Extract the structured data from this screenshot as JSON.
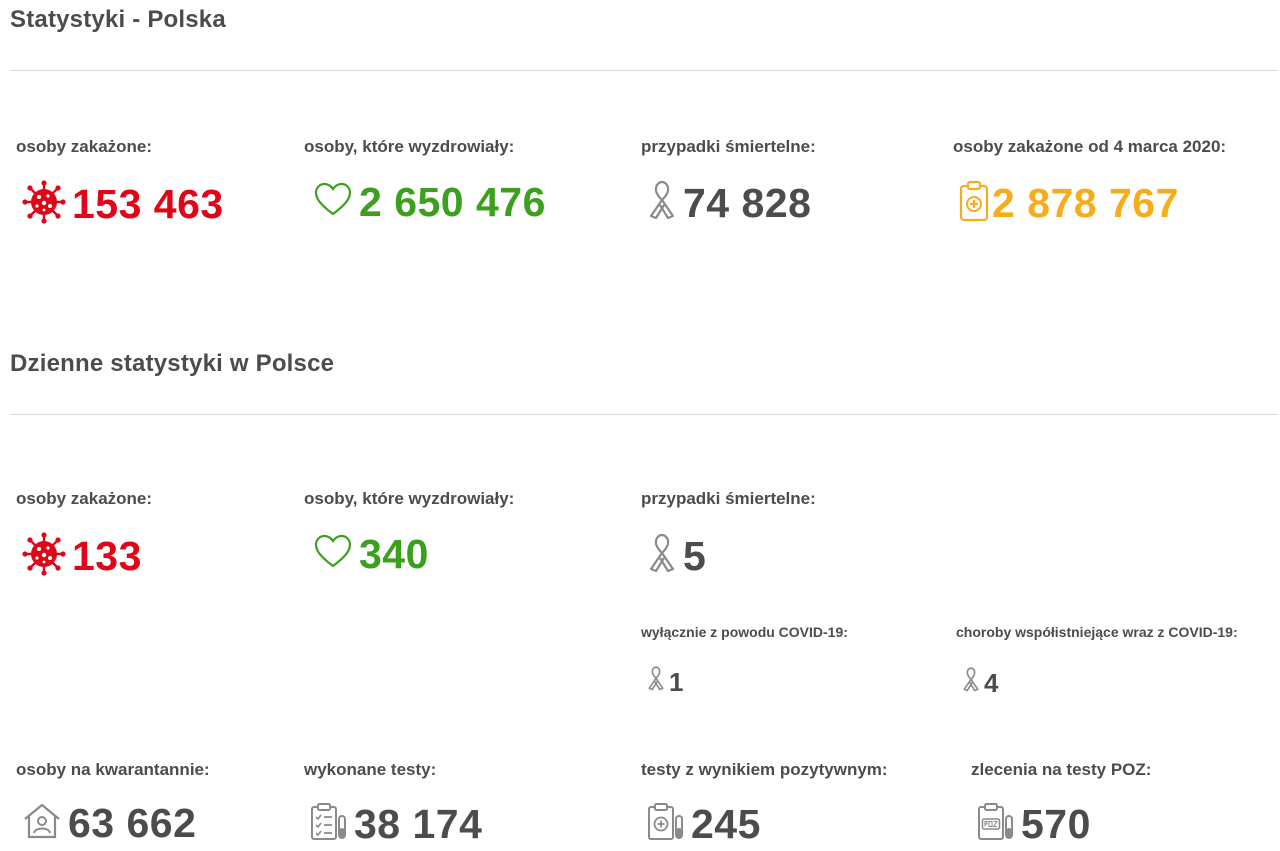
{
  "sections": {
    "total_title": "Statystyki - Polska",
    "daily_title": "Dzienne statystyki w Polsce"
  },
  "total": {
    "infected_label": "osoby zakażone:",
    "infected_value": "153 463",
    "recovered_label": "osoby, które wyzdrowiały:",
    "recovered_value": "2 650 476",
    "deaths_label": "przypadki śmiertelne:",
    "deaths_value": "74 828",
    "since_label": "osoby zakażone od 4 marca 2020:",
    "since_value": "2 878 767"
  },
  "daily": {
    "infected_label": "osoby zakażone:",
    "infected_value": "133",
    "recovered_label": "osoby, które wyzdrowiały:",
    "recovered_value": "340",
    "deaths_label": "przypadki śmiertelne:",
    "deaths_value": "5",
    "covid_only_label": "wyłącznie z powodu COVID-19:",
    "covid_only_value": "1",
    "comorbid_label": "choroby współistniejące wraz z COVID-19:",
    "comorbid_value": "4",
    "quarantine_label": "osoby na kwarantannie:",
    "quarantine_value": "63 662",
    "tests_label": "wykonane testy:",
    "tests_value": "38 174",
    "positive_label": "testy z wynikiem pozytywnym:",
    "positive_value": "245",
    "poz_label": "zlecenia na testy POZ:",
    "poz_value": "570"
  },
  "icons": {
    "virus": "virus-icon",
    "heart": "heart-icon",
    "ribbon": "ribbon-icon",
    "clipboard": "clipboard-plus-icon",
    "house": "house-person-icon",
    "test_list": "test-list-icon",
    "test_positive": "test-positive-icon",
    "test_poz": "test-poz-icon"
  },
  "colors": {
    "infected": "#e0061a",
    "recovered": "#3aa01d",
    "deaths": "#4c4c4c",
    "since": "#f7ad1b",
    "icon_grey": "#8a8a8a"
  }
}
